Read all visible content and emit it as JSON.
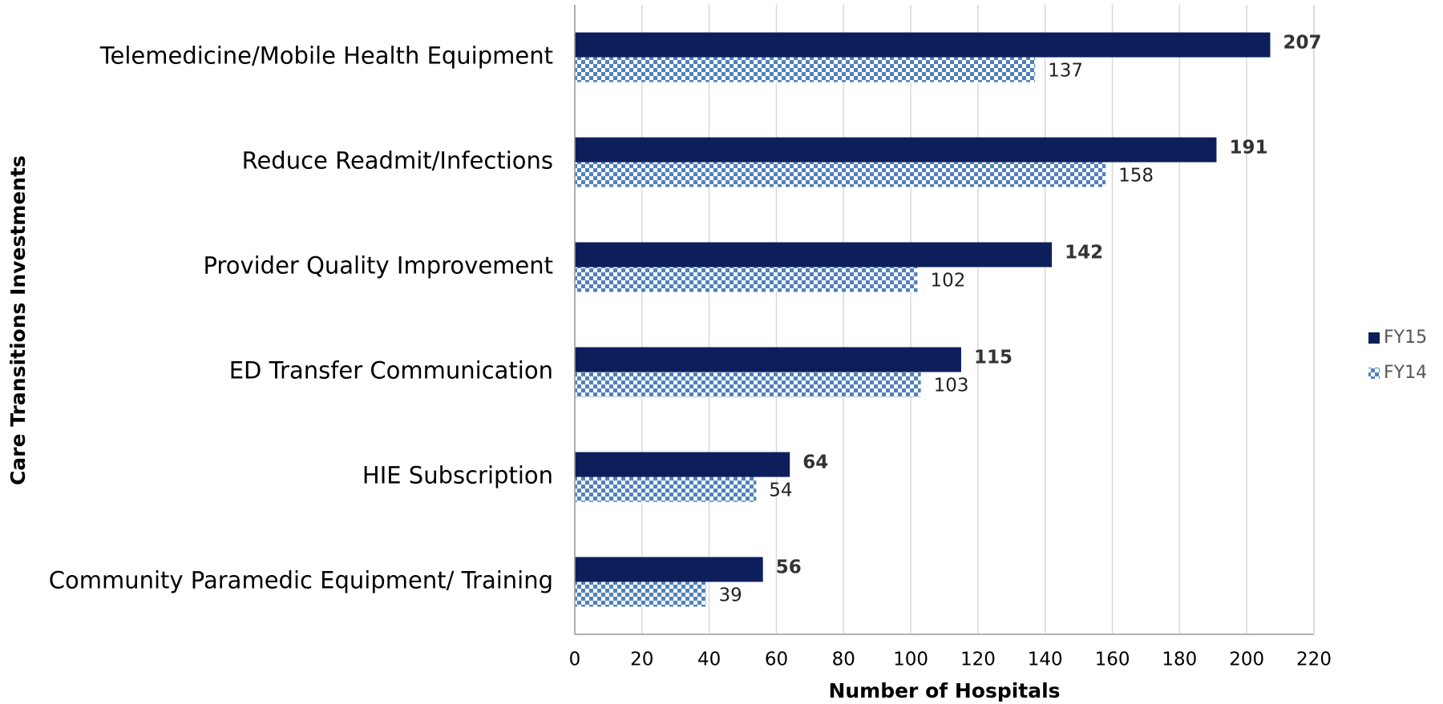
{
  "chart_data": {
    "type": "barh",
    "ylabel": "Care Transitions Investments",
    "xlabel": "Number of Hospitals",
    "categories": [
      "Telemedicine/Mobile Health Equipment",
      "Reduce Readmit/Infections",
      "Provider Quality Improvement",
      "ED Transfer Communication",
      "HIE Subscription",
      "Community Paramedic Equipment/ Training"
    ],
    "series": [
      {
        "name": "FY15",
        "color": "#0c1f5b",
        "values": [
          207,
          191,
          142,
          115,
          64,
          56
        ]
      },
      {
        "name": "FY14",
        "color": "#4f81bd",
        "pattern": "checker",
        "values": [
          137,
          158,
          102,
          103,
          54,
          39
        ]
      }
    ],
    "xlim": [
      0,
      220
    ],
    "xticks": [
      0,
      20,
      40,
      60,
      80,
      100,
      120,
      140,
      160,
      180,
      200,
      220
    ],
    "grid": true,
    "legend": "right"
  }
}
